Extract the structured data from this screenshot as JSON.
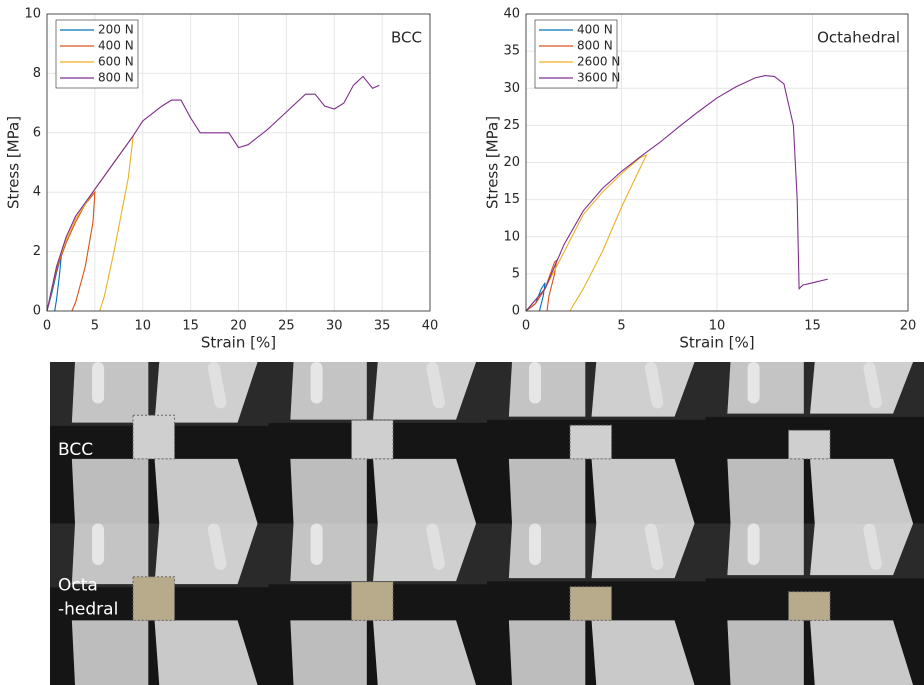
{
  "chart_data": [
    {
      "type": "line",
      "annotation": "BCC",
      "x_label": "Strain [%]",
      "y_label": "Stress [MPa]",
      "xlim": [
        0,
        40
      ],
      "ylim": [
        0,
        10
      ],
      "xticks": [
        0,
        5,
        10,
        15,
        20,
        25,
        30,
        35,
        40
      ],
      "yticks": [
        0,
        2,
        4,
        6,
        8,
        10
      ],
      "grid": true,
      "legend": "upper-left",
      "series": [
        {
          "name": "200 N",
          "color": "#0072bd",
          "x": [
            0,
            0.5,
            1,
            1.5,
            1.3,
            1.0,
            0.8
          ],
          "values": [
            0,
            0.6,
            1.3,
            1.9,
            1.2,
            0.4,
            0
          ]
        },
        {
          "name": "400 N",
          "color": "#d95319",
          "x": [
            0,
            1,
            2,
            3,
            4,
            5,
            4.8,
            4,
            3,
            2.6
          ],
          "values": [
            0,
            1.4,
            2.3,
            3.0,
            3.6,
            4.0,
            3.0,
            1.5,
            0.3,
            0
          ]
        },
        {
          "name": "600 N",
          "color": "#edb120",
          "x": [
            0,
            1,
            2,
            3,
            5,
            7,
            9,
            8.5,
            7,
            6,
            5.5
          ],
          "values": [
            0,
            1.5,
            2.4,
            3.1,
            4.1,
            5.0,
            5.9,
            4.5,
            2.0,
            0.5,
            0
          ]
        },
        {
          "name": "800 N",
          "color": "#7e2f8e",
          "x": [
            0,
            1,
            2,
            3,
            5,
            7,
            9,
            10,
            12,
            13,
            14,
            15,
            16,
            18,
            19,
            20,
            21,
            23,
            25,
            27,
            28,
            29,
            30,
            31,
            32,
            33,
            34,
            34.7
          ],
          "values": [
            0,
            1.5,
            2.5,
            3.2,
            4.1,
            5.0,
            5.9,
            6.4,
            6.9,
            7.1,
            7.1,
            6.5,
            6.0,
            6.0,
            6.0,
            5.5,
            5.6,
            6.1,
            6.7,
            7.3,
            7.3,
            6.9,
            6.8,
            7.0,
            7.6,
            7.9,
            7.5,
            7.6
          ]
        }
      ]
    },
    {
      "type": "line",
      "annotation": "Octahedral",
      "x_label": "Strain [%]",
      "y_label": "Stress [MPa]",
      "xlim": [
        0,
        20
      ],
      "ylim": [
        0,
        40
      ],
      "xticks": [
        0,
        5,
        10,
        15,
        20
      ],
      "yticks": [
        0,
        5,
        10,
        15,
        20,
        25,
        30,
        35,
        40
      ],
      "grid": true,
      "legend": "upper-left",
      "series": [
        {
          "name": "400 N",
          "color": "#0072bd",
          "x": [
            0,
            0.5,
            0.8,
            1.0,
            0.9,
            0.7
          ],
          "values": [
            0,
            1,
            3,
            3.8,
            2,
            0
          ]
        },
        {
          "name": "800 N",
          "color": "#d95319",
          "x": [
            0,
            0.5,
            1,
            1.5,
            1.6,
            1.5,
            1.2,
            1.1
          ],
          "values": [
            0,
            1,
            3,
            6.6,
            6.8,
            5,
            2,
            0
          ]
        },
        {
          "name": "2600 N",
          "color": "#edb120",
          "x": [
            0,
            1,
            2,
            3,
            4,
            5,
            6,
            6.3,
            5,
            4,
            3,
            2.3
          ],
          "values": [
            0,
            3,
            8,
            13,
            16,
            18.5,
            20.7,
            21,
            14,
            8,
            3,
            0
          ]
        },
        {
          "name": "3600 N",
          "color": "#7e2f8e",
          "x": [
            0,
            1,
            1.5,
            2,
            3,
            4,
            5,
            6,
            7,
            8,
            9,
            10,
            11,
            12,
            12.5,
            13,
            13.5,
            14,
            14.2,
            14.3,
            14.5,
            15,
            15.8
          ],
          "values": [
            0,
            3,
            6,
            9,
            13.5,
            16.5,
            18.8,
            20.8,
            22.7,
            24.8,
            26.8,
            28.7,
            30.2,
            31.4,
            31.7,
            31.6,
            30.6,
            25,
            15,
            3,
            3.5,
            3.8,
            4.3
          ]
        }
      ]
    }
  ],
  "photo_panel": {
    "rows": [
      {
        "label_lines": [
          "BCC"
        ]
      },
      {
        "label_lines": [
          "Octa",
          "-hedral"
        ]
      }
    ]
  }
}
